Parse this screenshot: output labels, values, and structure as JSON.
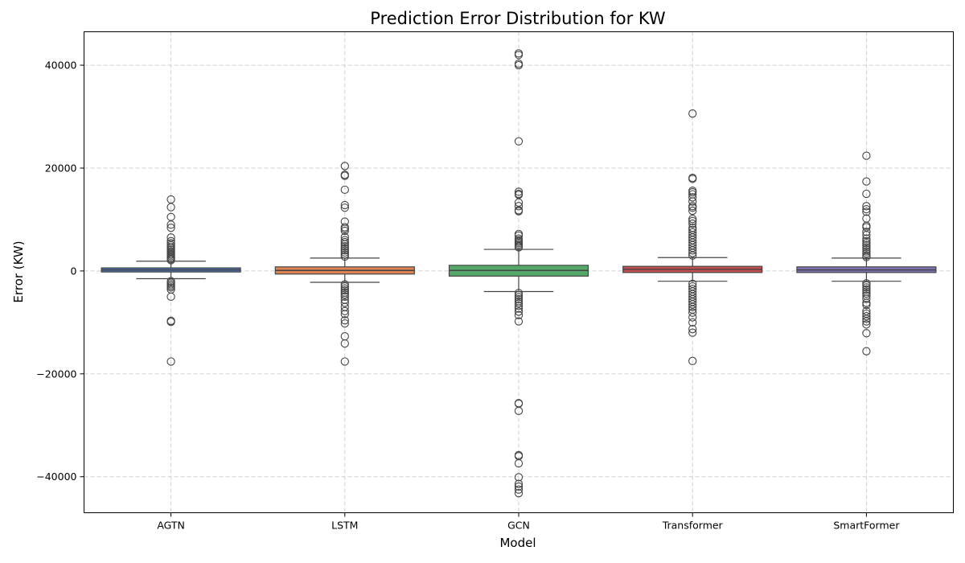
{
  "chart_data": {
    "type": "box",
    "title": "Prediction Error Distribution for KW",
    "xlabel": "Model",
    "ylabel": "Error (KW)",
    "ylim": [
      -47000,
      46500
    ],
    "yticks": [
      -40000,
      -20000,
      0,
      20000,
      40000
    ],
    "ytick_labels": [
      "−40000",
      "−20000",
      "0",
      "20000",
      "40000"
    ],
    "grid": true,
    "categories": [
      "AGTN",
      "LSTM",
      "GCN",
      "Transformer",
      "SmartFormer"
    ],
    "colors": [
      "#4c72b0",
      "#dd8452",
      "#55a868",
      "#c44e52",
      "#8172b3"
    ],
    "series": [
      {
        "name": "AGTN",
        "whisker_low": -1500,
        "q1": -200,
        "median": 200,
        "q3": 600,
        "whisker_high": 1900,
        "outliers": [
          13900,
          12400,
          10500,
          9000,
          8400,
          6500,
          5800,
          5400,
          5000,
          4700,
          4400,
          4100,
          3800,
          3500,
          3200,
          2900,
          2600,
          2300,
          2100,
          -2000,
          -2300,
          -2600,
          -2900,
          -3200,
          -3600,
          -5000,
          -9700,
          -9900,
          -17600
        ]
      },
      {
        "name": "LSTM",
        "whisker_low": -2200,
        "q1": -600,
        "median": 100,
        "q3": 800,
        "whisker_high": 2500,
        "outliers": [
          20400,
          18700,
          18500,
          15800,
          12800,
          12300,
          9600,
          8500,
          8200,
          7800,
          6600,
          6000,
          5600,
          5200,
          4800,
          4400,
          4000,
          3600,
          3200,
          2800,
          -2600,
          -3000,
          -3400,
          -3800,
          -4200,
          -4600,
          -5000,
          -5600,
          -6200,
          -7000,
          -7800,
          -8400,
          -9600,
          -10200,
          -12700,
          -14100,
          -17600
        ]
      },
      {
        "name": "GCN",
        "whisker_low": -4000,
        "q1": -1000,
        "median": 100,
        "q3": 1100,
        "whisker_high": 4200,
        "outliers": [
          42300,
          42000,
          40300,
          40000,
          25200,
          15400,
          15000,
          14800,
          13300,
          12600,
          11800,
          11600,
          7200,
          6900,
          6300,
          6000,
          5700,
          5400,
          5100,
          4800,
          4600,
          -4300,
          -4700,
          -5100,
          -5500,
          -5900,
          -6300,
          -6800,
          -7300,
          -7900,
          -8600,
          -9800,
          -25700,
          -25800,
          -27200,
          -35800,
          -36000,
          -37400,
          -40100,
          -41400,
          -41900,
          -42500,
          -43200
        ]
      },
      {
        "name": "Transformer",
        "whisker_low": -2000,
        "q1": -300,
        "median": 300,
        "q3": 900,
        "whisker_high": 2600,
        "outliers": [
          30600,
          18100,
          17900,
          15600,
          15300,
          14900,
          14300,
          13500,
          12600,
          12300,
          11700,
          10100,
          9700,
          9200,
          8400,
          8000,
          7500,
          7000,
          6500,
          6000,
          5500,
          5000,
          4500,
          4000,
          3500,
          3000,
          -2500,
          -3000,
          -3500,
          -4000,
          -4500,
          -5000,
          -5500,
          -6000,
          -6500,
          -7000,
          -7500,
          -8100,
          -9000,
          -10000,
          -11300,
          -12000,
          -17500
        ]
      },
      {
        "name": "SmartFormer",
        "whisker_low": -2000,
        "q1": -300,
        "median": 200,
        "q3": 800,
        "whisker_high": 2500,
        "outliers": [
          22400,
          17400,
          15000,
          12600,
          12000,
          11500,
          10200,
          8800,
          8500,
          7600,
          7000,
          6300,
          5800,
          5400,
          5000,
          4600,
          4200,
          3800,
          3400,
          3000,
          2700,
          -2400,
          -2800,
          -3200,
          -3600,
          -4000,
          -4400,
          -4800,
          -5400,
          -6200,
          -6600,
          -7800,
          -8300,
          -8800,
          -9300,
          -9800,
          -10400,
          -12100,
          -15600
        ]
      }
    ]
  }
}
